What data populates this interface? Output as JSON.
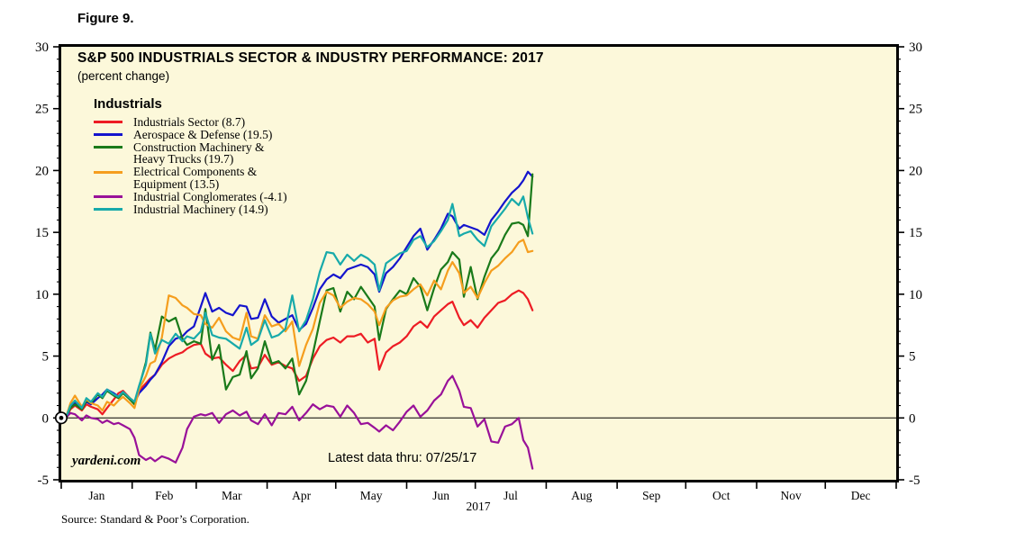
{
  "figure_label": "Figure 9.",
  "title": "S&P 500 INDUSTRIALS SECTOR & INDUSTRY PERFORMANCE: 2017",
  "subtitle": "(percent change)",
  "legend": {
    "header": "Industrials",
    "rows": [
      {
        "color": "#ED1C24",
        "text": "Industrials Sector (8.7)"
      },
      {
        "color": "#1414CD",
        "text": "Aerospace & Defense (19.5)"
      },
      {
        "color": "#1A7A1A",
        "text": "Construction Machinery &"
      },
      {
        "color": null,
        "text": "Heavy Trucks (19.7)"
      },
      {
        "color": "#F59E1E",
        "text": "Electrical Components &"
      },
      {
        "color": null,
        "text": "Equipment (13.5)"
      },
      {
        "color": "#991199",
        "text": "Industrial Conglomerates (-4.1)"
      },
      {
        "color": "#17AAAA",
        "text": "Industrial Machinery (14.9)"
      }
    ]
  },
  "watermark": "yardeni.com",
  "annotation": "Latest data thru: 07/25/17",
  "source": "Source: Standard & Poor’s Corporation.",
  "x_axis": {
    "year_label": "2017"
  },
  "chart_data": {
    "type": "line",
    "title": "S&P 500 INDUSTRIALS SECTOR & INDUSTRY PERFORMANCE: 2017",
    "ylabel": "percent change",
    "ylim": [
      -5,
      30
    ],
    "ytick_step_major": 5,
    "ytick_step_minor": 1,
    "yticks": [
      -5,
      0,
      5,
      10,
      15,
      20,
      25,
      30
    ],
    "grid": false,
    "legend_position": "top-left inside",
    "zero_line": true,
    "start_marker": {
      "day": 0,
      "value": 0
    },
    "x_unit": "day_of_year_2017",
    "month_labels": [
      "Jan",
      "Feb",
      "Mar",
      "Apr",
      "May",
      "Jun",
      "Jul",
      "Aug",
      "Sep",
      "Oct",
      "Nov",
      "Dec"
    ],
    "month_boundaries_day": [
      0,
      31,
      59,
      90,
      120,
      151,
      181,
      212,
      243,
      273,
      304,
      334,
      365
    ],
    "x_days": [
      2,
      4,
      6,
      9,
      11,
      13,
      16,
      18,
      20,
      23,
      25,
      27,
      30,
      32,
      34,
      37,
      39,
      41,
      44,
      47,
      50,
      53,
      55,
      58,
      61,
      63,
      66,
      69,
      72,
      75,
      78,
      81,
      83,
      86,
      89,
      92,
      95,
      98,
      101,
      104,
      107,
      110,
      113,
      116,
      119,
      122,
      125,
      128,
      131,
      134,
      137,
      139,
      142,
      145,
      148,
      151,
      154,
      157,
      160,
      163,
      166,
      169,
      171,
      174,
      176,
      179,
      182,
      185,
      188,
      191,
      194,
      197,
      200,
      202,
      204,
      206
    ],
    "series": [
      {
        "name": "Industrials Sector",
        "final_value": 8.7,
        "color": "#ED1C24",
        "values": [
          0.0,
          0.7,
          1.0,
          0.6,
          1.1,
          0.9,
          0.7,
          0.3,
          0.8,
          1.5,
          2.0,
          2.2,
          1.6,
          1.3,
          2.2,
          2.8,
          3.2,
          3.5,
          4.3,
          4.8,
          5.1,
          5.3,
          5.6,
          5.9,
          6.0,
          5.2,
          4.8,
          4.9,
          4.3,
          3.8,
          4.6,
          5.1,
          4.0,
          4.1,
          5.1,
          4.3,
          4.5,
          4.2,
          4.0,
          3.0,
          3.4,
          4.8,
          5.8,
          6.3,
          6.5,
          6.1,
          6.6,
          6.6,
          6.8,
          6.1,
          6.4,
          3.9,
          5.3,
          5.8,
          6.1,
          6.6,
          7.4,
          7.8,
          7.3,
          8.2,
          8.7,
          9.2,
          9.4,
          8.1,
          7.5,
          7.9,
          7.3,
          8.1,
          8.7,
          9.3,
          9.5,
          10.0,
          10.3,
          10.1,
          9.6,
          8.7
        ]
      },
      {
        "name": "Aerospace & Defense",
        "final_value": 19.5,
        "color": "#1414CD",
        "values": [
          0.0,
          0.9,
          1.2,
          0.8,
          1.3,
          1.1,
          1.6,
          1.9,
          2.3,
          2.0,
          1.7,
          2.1,
          1.5,
          1.2,
          2.0,
          2.6,
          3.1,
          3.5,
          4.5,
          5.8,
          6.4,
          6.6,
          7.0,
          7.4,
          9.0,
          10.1,
          8.6,
          8.9,
          8.5,
          8.3,
          9.1,
          9.0,
          8.0,
          8.1,
          9.6,
          8.2,
          7.7,
          8.0,
          8.3,
          7.1,
          7.6,
          8.9,
          10.4,
          11.2,
          11.6,
          11.3,
          12.0,
          12.2,
          12.4,
          12.2,
          11.6,
          10.2,
          11.7,
          12.2,
          12.9,
          13.8,
          14.7,
          15.3,
          13.6,
          14.4,
          15.3,
          16.5,
          16.3,
          15.3,
          15.6,
          15.4,
          15.2,
          14.8,
          16.0,
          16.7,
          17.5,
          18.2,
          18.7,
          19.2,
          19.9,
          19.5
        ]
      },
      {
        "name": "Construction Machinery & Heavy Trucks",
        "final_value": 19.7,
        "color": "#1A7A1A",
        "values": [
          0.0,
          0.8,
          1.1,
          0.7,
          1.4,
          1.2,
          1.9,
          1.6,
          2.2,
          1.8,
          1.6,
          2.0,
          1.5,
          1.1,
          2.5,
          4.5,
          6.9,
          5.5,
          8.2,
          7.8,
          8.1,
          6.4,
          5.9,
          6.2,
          6.0,
          8.8,
          4.7,
          5.9,
          2.3,
          3.3,
          3.5,
          5.4,
          3.2,
          4.0,
          6.2,
          4.4,
          4.6,
          4.0,
          4.8,
          1.9,
          3.0,
          5.2,
          7.8,
          10.3,
          10.5,
          8.6,
          10.2,
          9.6,
          10.6,
          9.8,
          9.0,
          6.3,
          8.8,
          9.6,
          10.3,
          10.0,
          11.3,
          10.6,
          8.7,
          10.5,
          12.0,
          12.6,
          13.4,
          12.8,
          9.8,
          12.2,
          9.6,
          11.4,
          12.9,
          13.6,
          14.8,
          15.7,
          15.8,
          15.6,
          14.7,
          19.7
        ]
      },
      {
        "name": "Electrical Components & Equipment",
        "final_value": 13.5,
        "color": "#F59E1E",
        "values": [
          0.0,
          1.2,
          1.8,
          0.9,
          1.5,
          1.2,
          1.0,
          0.6,
          1.3,
          1.0,
          1.4,
          1.7,
          1.2,
          0.8,
          2.3,
          3.4,
          4.4,
          4.6,
          6.5,
          9.9,
          9.7,
          9.1,
          8.9,
          8.4,
          8.3,
          7.6,
          7.3,
          8.1,
          7.0,
          6.5,
          6.3,
          8.5,
          6.6,
          6.4,
          8.3,
          7.4,
          7.6,
          7.0,
          7.8,
          4.2,
          5.9,
          7.2,
          9.3,
          10.2,
          9.9,
          8.9,
          9.4,
          9.7,
          9.6,
          9.2,
          8.6,
          7.5,
          8.9,
          9.5,
          9.8,
          9.9,
          10.4,
          10.8,
          9.9,
          11.1,
          10.4,
          11.9,
          12.6,
          11.7,
          10.1,
          10.6,
          9.7,
          10.9,
          11.9,
          12.3,
          12.9,
          13.4,
          14.2,
          14.4,
          13.4,
          13.5
        ]
      },
      {
        "name": "Industrial Conglomerates",
        "final_value": -4.1,
        "color": "#991199",
        "values": [
          0.0,
          0.4,
          0.3,
          -0.2,
          0.2,
          0.0,
          -0.1,
          -0.4,
          -0.2,
          -0.5,
          -0.4,
          -0.6,
          -0.9,
          -1.6,
          -3.0,
          -3.4,
          -3.2,
          -3.5,
          -3.1,
          -3.3,
          -3.6,
          -2.4,
          -0.9,
          0.1,
          0.3,
          0.2,
          0.4,
          -0.4,
          0.3,
          0.6,
          0.2,
          0.5,
          -0.2,
          -0.5,
          0.3,
          -0.6,
          0.4,
          0.3,
          0.9,
          -0.2,
          0.4,
          1.1,
          0.7,
          1.0,
          0.9,
          0.1,
          1.0,
          0.4,
          -0.5,
          -0.4,
          -0.8,
          -1.1,
          -0.6,
          -1.0,
          -0.3,
          0.5,
          1.0,
          0.1,
          0.6,
          1.4,
          1.9,
          3.0,
          3.4,
          2.2,
          0.9,
          0.8,
          -0.7,
          -0.1,
          -1.9,
          -2.0,
          -0.7,
          -0.5,
          0.0,
          -1.8,
          -2.4,
          -4.1
        ]
      },
      {
        "name": "Industrial Machinery",
        "final_value": 14.9,
        "color": "#17AAAA",
        "values": [
          0.0,
          1.0,
          1.4,
          0.8,
          1.6,
          1.3,
          2.0,
          1.7,
          2.3,
          1.9,
          1.7,
          2.1,
          1.6,
          1.3,
          2.6,
          4.3,
          6.8,
          5.2,
          6.3,
          6.0,
          6.8,
          6.2,
          6.6,
          6.4,
          7.0,
          8.5,
          6.7,
          6.5,
          6.4,
          6.0,
          5.6,
          7.3,
          5.9,
          6.3,
          7.9,
          6.5,
          6.7,
          7.2,
          9.9,
          7.0,
          7.9,
          9.6,
          11.8,
          13.4,
          13.3,
          12.4,
          13.2,
          12.7,
          13.2,
          12.9,
          12.4,
          10.3,
          12.5,
          12.9,
          13.3,
          13.5,
          14.4,
          14.7,
          13.8,
          14.3,
          15.1,
          16.0,
          17.3,
          14.7,
          14.9,
          15.1,
          14.4,
          13.9,
          15.5,
          16.2,
          16.9,
          17.7,
          17.2,
          17.9,
          16.2,
          14.9
        ]
      }
    ]
  }
}
